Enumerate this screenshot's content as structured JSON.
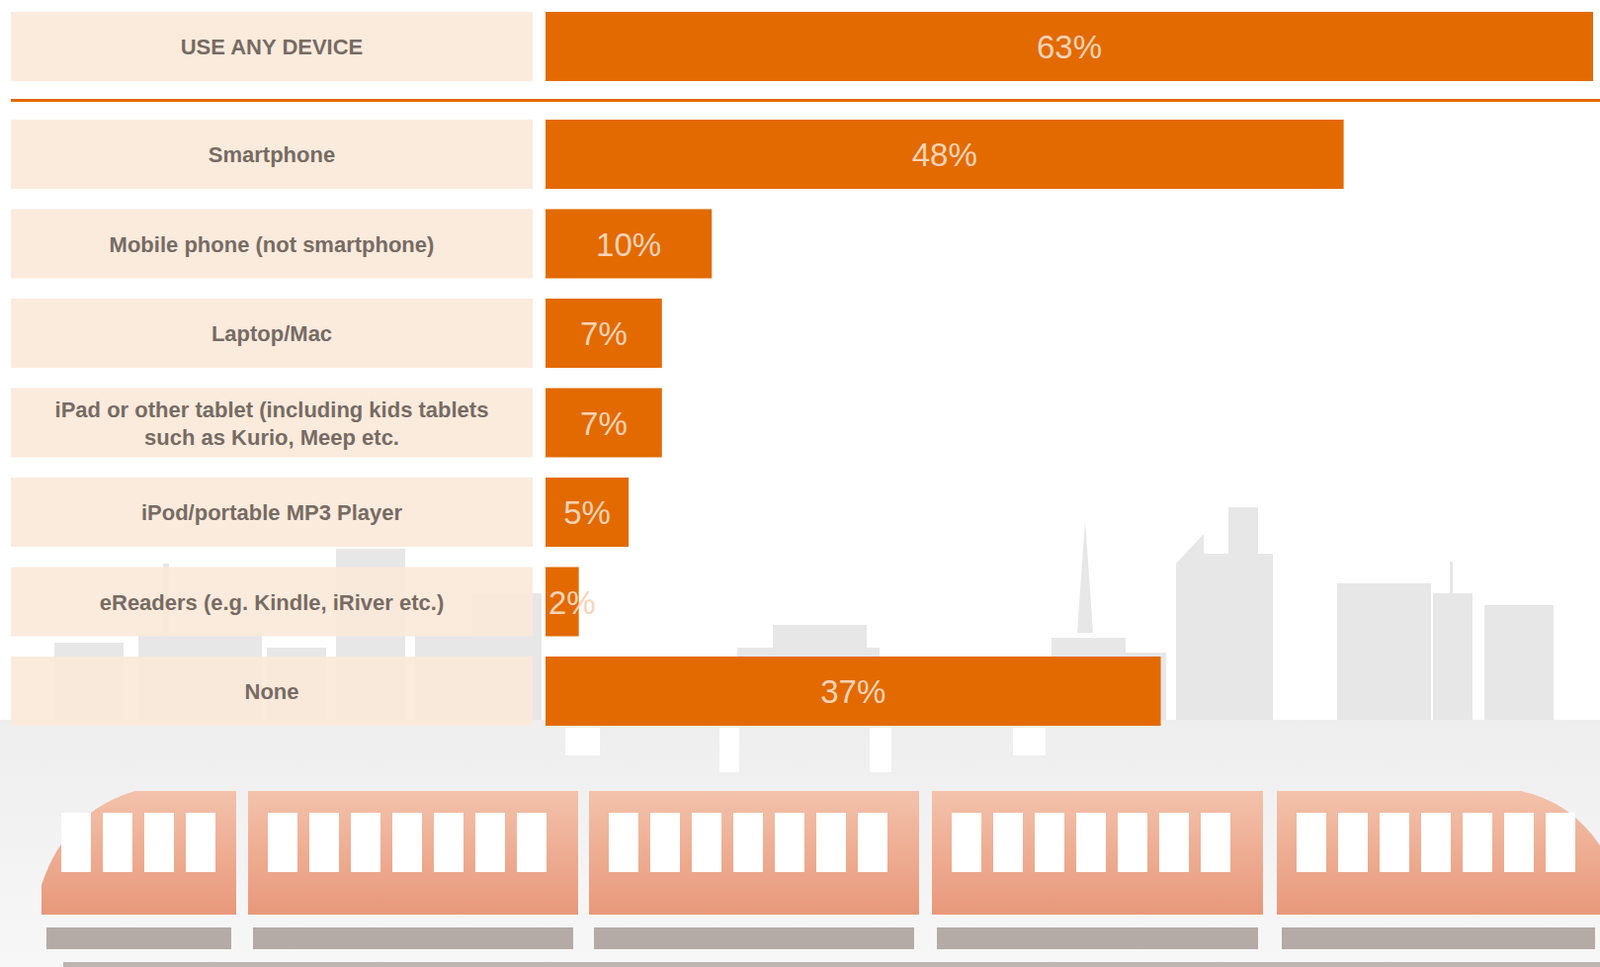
{
  "chart_data": {
    "type": "bar",
    "orientation": "horizontal",
    "categories": [
      "USE ANY DEVICE",
      "Smartphone",
      "Mobile phone (not smartphone)",
      "Laptop/Mac",
      "iPad or other tablet (including kids tablets such as Kurio, Meep etc.",
      "iPod/portable MP3 Player",
      "eReaders (e.g. Kindle, iRiver etc.)",
      "None"
    ],
    "values": [
      63,
      48,
      10,
      7,
      7,
      5,
      2,
      37
    ],
    "value_labels": [
      "63%",
      "48%",
      "10%",
      "7%",
      "7%",
      "5%",
      "2%",
      "37%"
    ],
    "data_labels": true,
    "xlim": [
      0,
      63
    ],
    "color": "#e36a00",
    "tick_labels": false,
    "grid": false
  }
}
